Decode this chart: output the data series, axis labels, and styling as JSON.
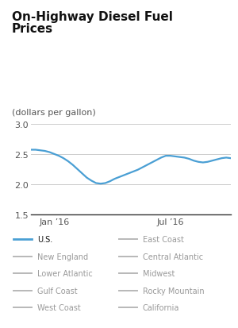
{
  "title_line1": "On-Highway Diesel Fuel",
  "title_line2": "Prices",
  "ylabel": "(dollars per gallon)",
  "ylim": [
    1.5,
    3.1
  ],
  "yticks": [
    1.5,
    2.0,
    2.5,
    3.0
  ],
  "xtick_labels": [
    "Jan ’16",
    "Jul ’16"
  ],
  "jan_idx": 5,
  "jul_idx": 30,
  "background_color": "#ffffff",
  "line_color_us": "#4a9fd4",
  "line_color_others": "#b8b8b8",
  "legend_bg": "#e8e8e8",
  "us_data": [
    2.57,
    2.57,
    2.56,
    2.55,
    2.53,
    2.5,
    2.47,
    2.43,
    2.38,
    2.32,
    2.25,
    2.18,
    2.11,
    2.06,
    2.02,
    2.01,
    2.02,
    2.05,
    2.09,
    2.12,
    2.15,
    2.18,
    2.21,
    2.24,
    2.28,
    2.32,
    2.36,
    2.4,
    2.44,
    2.47,
    2.47,
    2.46,
    2.45,
    2.44,
    2.42,
    2.39,
    2.37,
    2.36,
    2.37,
    2.39,
    2.41,
    2.43,
    2.44,
    2.43
  ],
  "col1_labels": [
    "U.S.",
    "New England",
    "Lower Atlantic",
    "Gulf Coast",
    "West Coast"
  ],
  "col2_labels": [
    "East Coast",
    "Central Atlantic",
    "Midwest",
    "Rocky Mountain",
    "California"
  ],
  "title_fontsize": 11,
  "axis_fontsize": 8,
  "legend_fontsize": 7
}
